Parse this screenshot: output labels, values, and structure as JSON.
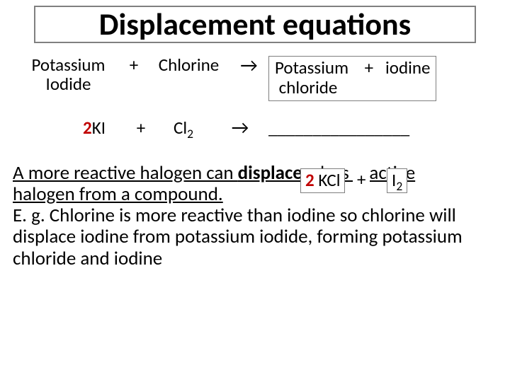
{
  "colors": {
    "accent_red": "#c00000",
    "border_gray": "#7f7f7f",
    "text": "#000000",
    "bg": "#ffffff"
  },
  "fontsizes": {
    "title": 44,
    "equation": 25,
    "body": 27
  },
  "title": "Displacement equations",
  "eq1": {
    "reactant1_line1": "Potassium",
    "reactant1_line2": "Iodide",
    "plus": "+",
    "reactant2": "Chlorine",
    "arrow": "→",
    "product_line1": "Potassium    +   iodine",
    "product_line2": " chloride"
  },
  "eq2": {
    "coef1": "2",
    "reactant1": "KI",
    "plus": "+",
    "r2_base": "Cl",
    "r2_sub": "2",
    "arrow": "→",
    "blank": "________________",
    "prod_coef": "2",
    "prod1": " KCl",
    "plus2": "+",
    "prod2_base": "I",
    "prod2_sub": "2"
  },
  "explain": {
    "s1a": "A more reactive halogen can ",
    "s1b": "displace",
    "s1c": " a less reactive ",
    "s2": "halogen from a compound.",
    "s3": "E. g. Chlorine is more reactive than iodine so chlorine will displace iodine from potassium iodide, forming potassium chloride and iodine"
  }
}
